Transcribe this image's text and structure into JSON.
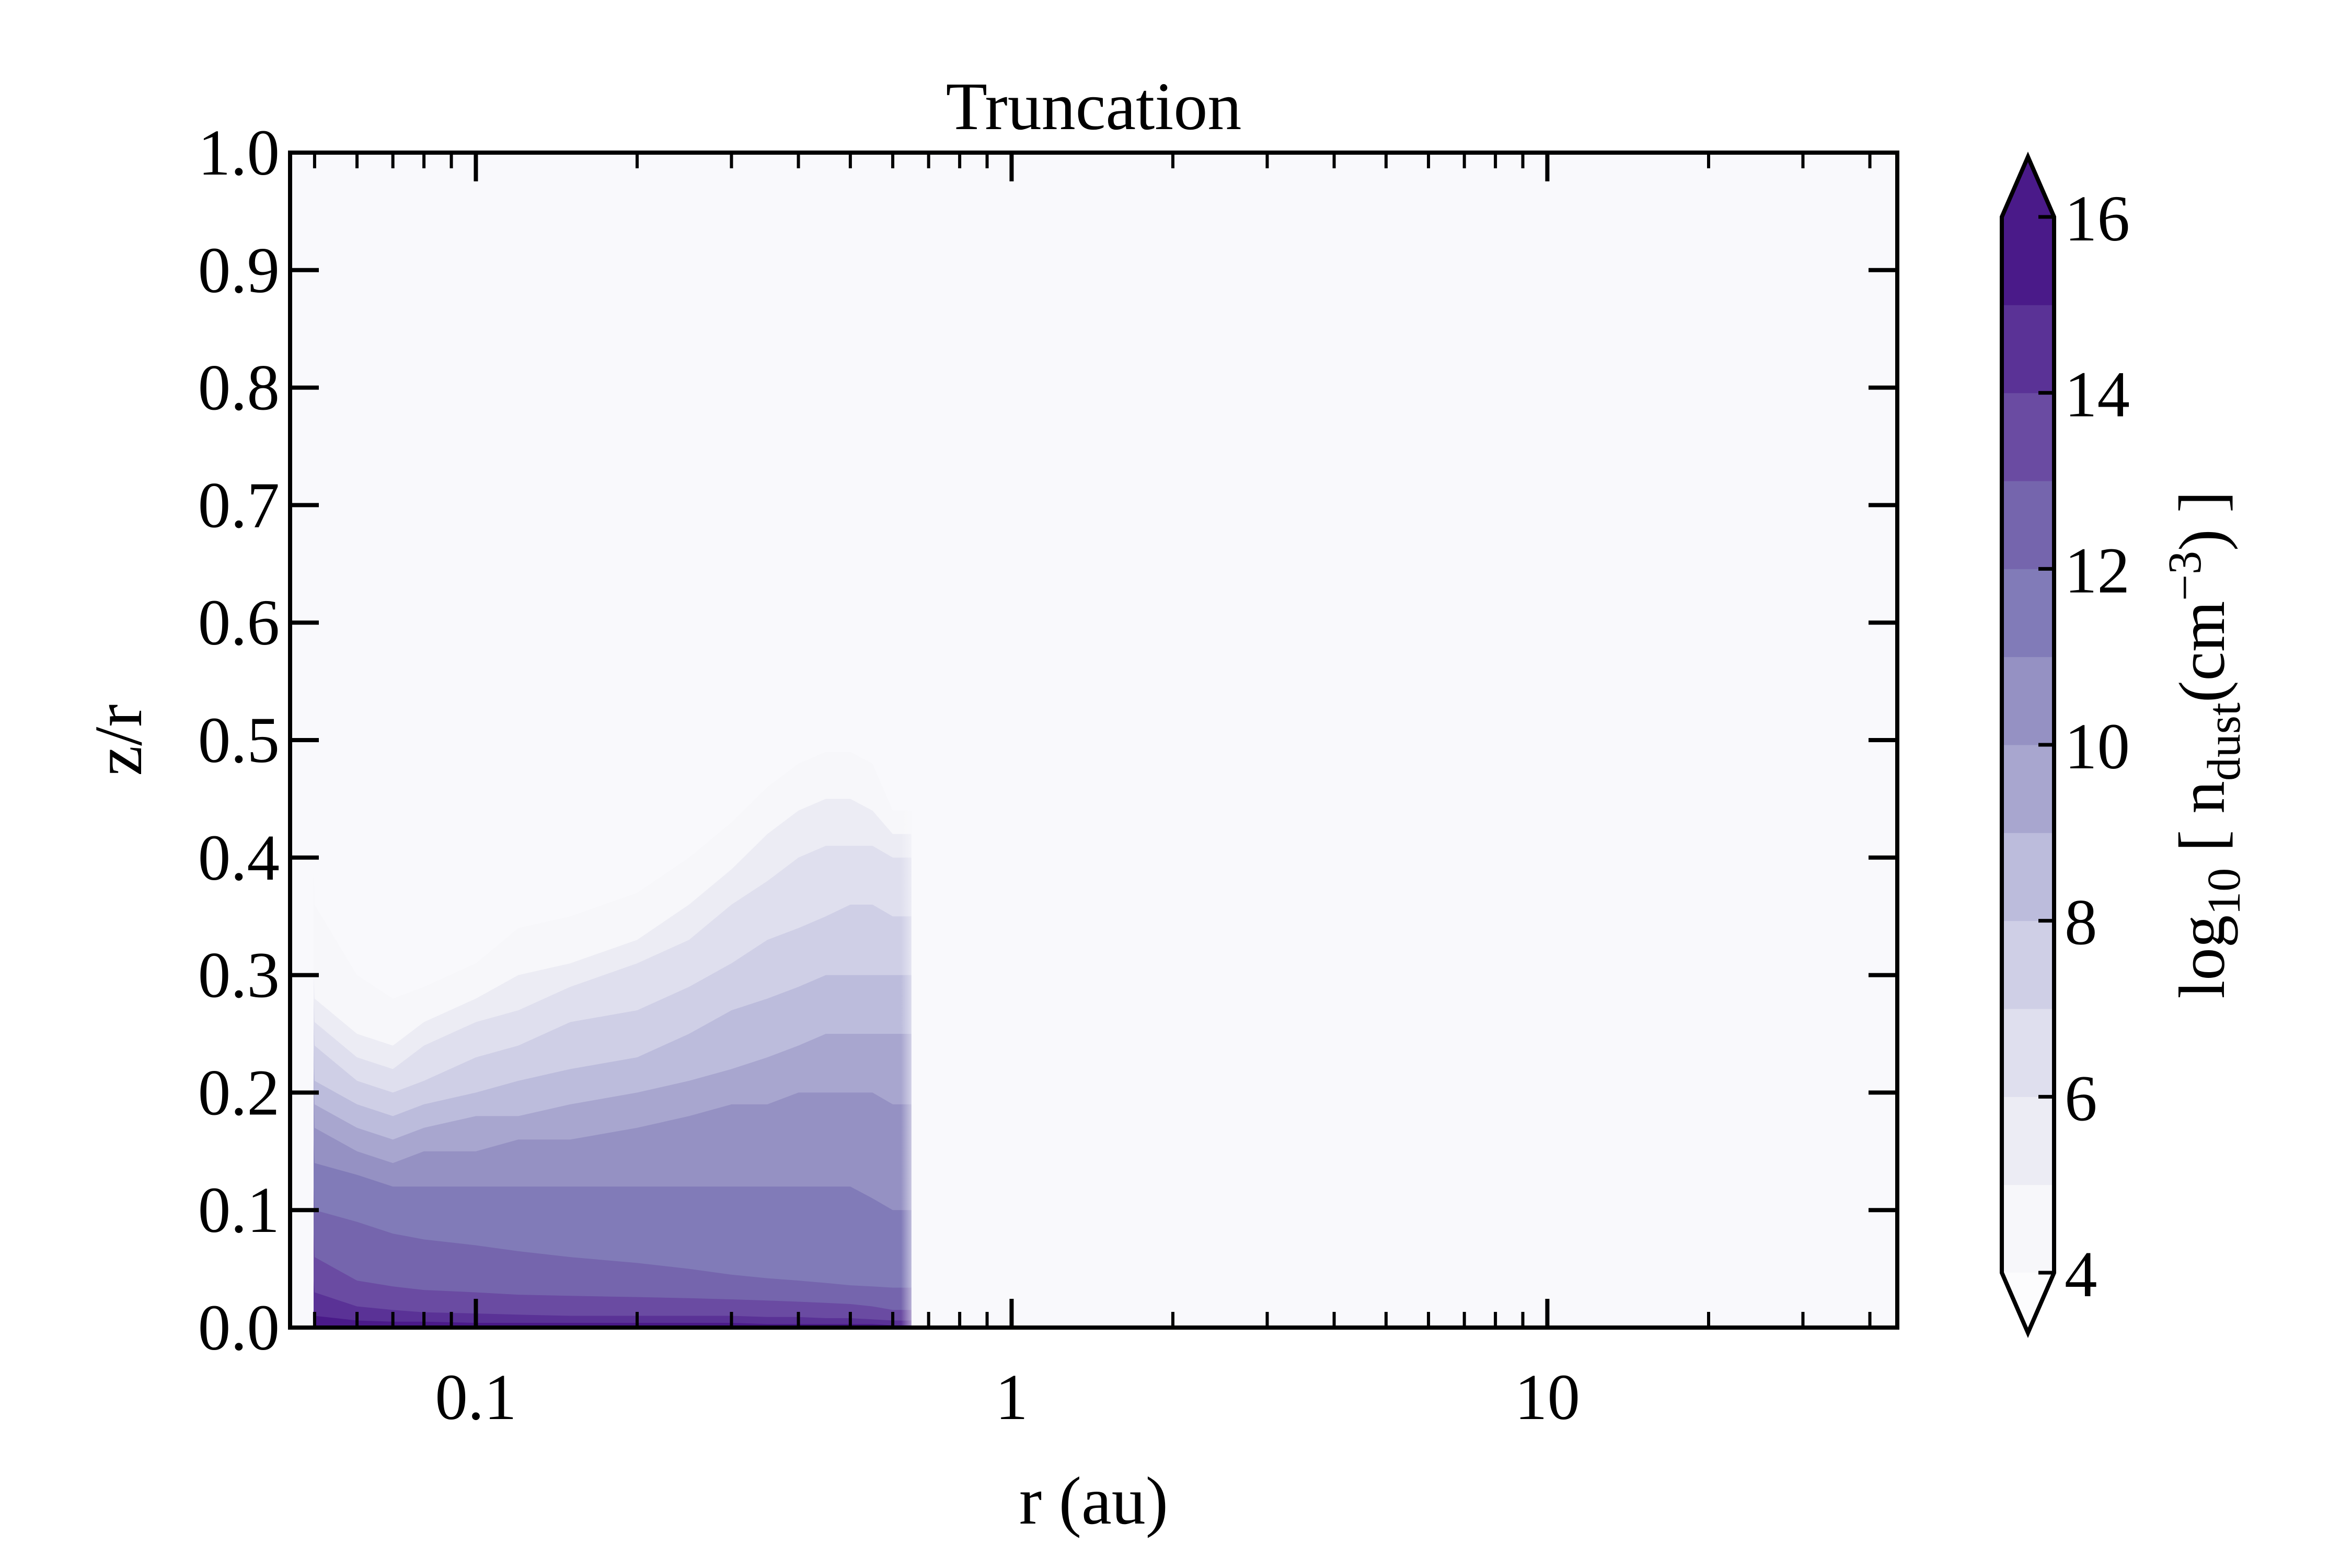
{
  "chart_data": {
    "type": "contour",
    "title": "Truncation",
    "xlabel": "r (au)",
    "ylabel": "z/r",
    "x_scale": "log",
    "xlim": [
      0.045,
      45
    ],
    "ylim": [
      0.0,
      1.0
    ],
    "x_tick_labels": [
      "0.1",
      "1",
      "10"
    ],
    "x_ticks": [
      0.1,
      1,
      10
    ],
    "y_ticks": [
      0.0,
      0.1,
      0.2,
      0.3,
      0.4,
      0.5,
      0.6,
      0.7,
      0.8,
      0.9,
      1.0
    ],
    "y_tick_labels": [
      "0.0",
      "0.1",
      "0.2",
      "0.3",
      "0.4",
      "0.5",
      "0.6",
      "0.7",
      "0.8",
      "0.9",
      "1.0"
    ],
    "grid": false,
    "background_color": "#f9f9fc",
    "truncation_radius_au": 0.65,
    "colorbar": {
      "label_parts": {
        "main": "log",
        "sub": "10",
        "bracket_open": "[",
        "n": "n",
        "n_sub": "dust",
        "unit_open": "(cm",
        "unit_sup": "−3",
        "unit_close": ")",
        "bracket_close": "]"
      },
      "ticks": [
        4,
        6,
        8,
        10,
        12,
        14,
        16
      ],
      "tick_labels": [
        "4",
        "6",
        "8",
        "10",
        "12",
        "14",
        "16"
      ],
      "range": [
        4,
        16
      ],
      "extend": "both",
      "levels": [
        4,
        5,
        6,
        7,
        8,
        9,
        10,
        11,
        12,
        13,
        14,
        15,
        16
      ],
      "level_colors": [
        "#f7f7fa",
        "#ececf4",
        "#dfdfee",
        "#cfcfe6",
        "#bcbcdc",
        "#a8a6cf",
        "#9591c3",
        "#817bb8",
        "#7565ad",
        "#6a4ba2",
        "#5a3296",
        "#4a1a89"
      ],
      "under_color": "#fcfcfd",
      "over_color": "#4a1a89"
    },
    "series": [
      {
        "level": 4,
        "x": [
          0.045,
          0.05,
          0.06,
          0.07,
          0.08,
          0.1,
          0.12,
          0.15,
          0.2,
          0.25,
          0.3,
          0.35,
          0.4,
          0.45,
          0.5,
          0.55,
          0.6
        ],
        "z": [
          0.4,
          0.36,
          0.3,
          0.28,
          0.29,
          0.31,
          0.34,
          0.35,
          0.37,
          0.4,
          0.43,
          0.46,
          0.48,
          0.49,
          0.49,
          0.48,
          0.44
        ]
      },
      {
        "level": 5,
        "x": [
          0.045,
          0.05,
          0.06,
          0.07,
          0.08,
          0.1,
          0.12,
          0.15,
          0.2,
          0.25,
          0.3,
          0.35,
          0.4,
          0.45,
          0.5,
          0.55,
          0.6
        ],
        "z": [
          0.3,
          0.28,
          0.25,
          0.24,
          0.26,
          0.28,
          0.3,
          0.31,
          0.33,
          0.36,
          0.39,
          0.42,
          0.44,
          0.45,
          0.45,
          0.44,
          0.42
        ]
      },
      {
        "level": 6,
        "x": [
          0.045,
          0.05,
          0.06,
          0.07,
          0.08,
          0.1,
          0.12,
          0.15,
          0.2,
          0.25,
          0.3,
          0.35,
          0.4,
          0.45,
          0.5,
          0.55,
          0.6
        ],
        "z": [
          0.28,
          0.26,
          0.23,
          0.22,
          0.24,
          0.26,
          0.27,
          0.29,
          0.31,
          0.33,
          0.36,
          0.38,
          0.4,
          0.41,
          0.41,
          0.41,
          0.4
        ]
      },
      {
        "level": 7,
        "x": [
          0.045,
          0.05,
          0.06,
          0.07,
          0.08,
          0.1,
          0.12,
          0.15,
          0.2,
          0.25,
          0.3,
          0.35,
          0.4,
          0.45,
          0.5,
          0.55,
          0.6
        ],
        "z": [
          0.26,
          0.24,
          0.21,
          0.2,
          0.21,
          0.23,
          0.24,
          0.26,
          0.27,
          0.29,
          0.31,
          0.33,
          0.34,
          0.35,
          0.36,
          0.36,
          0.35
        ]
      },
      {
        "level": 8,
        "x": [
          0.045,
          0.05,
          0.06,
          0.07,
          0.08,
          0.1,
          0.12,
          0.15,
          0.2,
          0.25,
          0.3,
          0.35,
          0.4,
          0.45,
          0.5,
          0.55,
          0.6
        ],
        "z": [
          0.24,
          0.21,
          0.19,
          0.18,
          0.19,
          0.2,
          0.21,
          0.22,
          0.23,
          0.25,
          0.27,
          0.28,
          0.29,
          0.3,
          0.3,
          0.3,
          0.3
        ]
      },
      {
        "level": 9,
        "x": [
          0.045,
          0.05,
          0.06,
          0.07,
          0.08,
          0.1,
          0.12,
          0.15,
          0.2,
          0.25,
          0.3,
          0.35,
          0.4,
          0.45,
          0.5,
          0.55,
          0.6
        ],
        "z": [
          0.22,
          0.19,
          0.17,
          0.16,
          0.17,
          0.18,
          0.18,
          0.19,
          0.2,
          0.21,
          0.22,
          0.23,
          0.24,
          0.25,
          0.25,
          0.25,
          0.25
        ]
      },
      {
        "level": 10,
        "x": [
          0.045,
          0.05,
          0.06,
          0.07,
          0.08,
          0.1,
          0.12,
          0.15,
          0.2,
          0.25,
          0.3,
          0.35,
          0.4,
          0.45,
          0.5,
          0.55,
          0.6
        ],
        "z": [
          0.2,
          0.17,
          0.15,
          0.14,
          0.15,
          0.15,
          0.16,
          0.16,
          0.17,
          0.18,
          0.19,
          0.19,
          0.2,
          0.2,
          0.2,
          0.2,
          0.19
        ]
      },
      {
        "level": 11,
        "x": [
          0.045,
          0.05,
          0.06,
          0.07,
          0.08,
          0.1,
          0.12,
          0.15,
          0.2,
          0.25,
          0.3,
          0.35,
          0.4,
          0.45,
          0.5,
          0.55,
          0.6
        ],
        "z": [
          0.16,
          0.14,
          0.13,
          0.12,
          0.12,
          0.12,
          0.12,
          0.12,
          0.12,
          0.12,
          0.12,
          0.12,
          0.12,
          0.12,
          0.12,
          0.11,
          0.1
        ]
      },
      {
        "level": 12,
        "x": [
          0.045,
          0.05,
          0.06,
          0.07,
          0.08,
          0.1,
          0.12,
          0.15,
          0.2,
          0.25,
          0.3,
          0.35,
          0.4,
          0.45,
          0.5,
          0.55,
          0.6
        ],
        "z": [
          0.12,
          0.1,
          0.09,
          0.08,
          0.075,
          0.07,
          0.065,
          0.06,
          0.055,
          0.05,
          0.045,
          0.042,
          0.04,
          0.038,
          0.036,
          0.035,
          0.034
        ]
      },
      {
        "level": 13,
        "x": [
          0.045,
          0.05,
          0.06,
          0.07,
          0.08,
          0.1,
          0.12,
          0.15,
          0.2,
          0.25,
          0.3,
          0.35,
          0.4,
          0.45,
          0.5,
          0.55,
          0.6
        ],
        "z": [
          0.08,
          0.06,
          0.04,
          0.035,
          0.032,
          0.03,
          0.028,
          0.027,
          0.026,
          0.025,
          0.024,
          0.023,
          0.022,
          0.021,
          0.02,
          0.018,
          0.015
        ]
      },
      {
        "level": 14,
        "x": [
          0.045,
          0.05,
          0.06,
          0.07,
          0.08,
          0.1,
          0.12,
          0.15,
          0.2,
          0.25,
          0.3,
          0.35,
          0.4,
          0.45,
          0.5,
          0.55,
          0.6
        ],
        "z": [
          0.04,
          0.03,
          0.018,
          0.015,
          0.013,
          0.012,
          0.011,
          0.01,
          0.01,
          0.01,
          0.01,
          0.009,
          0.009,
          0.008,
          0.008,
          0.007,
          0.006
        ]
      },
      {
        "level": 15,
        "x": [
          0.045,
          0.05,
          0.06,
          0.07,
          0.08,
          0.1,
          0.12,
          0.15,
          0.2,
          0.25,
          0.3,
          0.35,
          0.4,
          0.45,
          0.5,
          0.55,
          0.6
        ],
        "z": [
          0.015,
          0.01,
          0.006,
          0.005,
          0.005,
          0.004,
          0.004,
          0.004,
          0.004,
          0.004,
          0.004,
          0.003,
          0.003,
          0.003,
          0.003,
          0.003,
          0.002
        ]
      }
    ]
  }
}
